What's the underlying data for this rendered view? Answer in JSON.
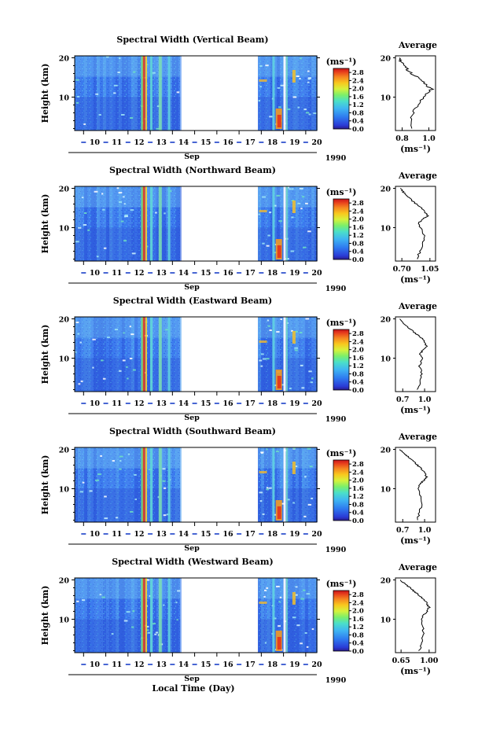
{
  "figure": {
    "year_label": "1990",
    "xlabel": "Local Time (Day)",
    "month_label": "Sep",
    "colorbar_unit": "(ms⁻¹)",
    "avg_title": "Average",
    "avg_unit": "(ms⁻¹)",
    "ylabel": "Height (km)"
  },
  "chart_data": [
    {
      "type": "heatmap",
      "title": "Spectral Width (Vertical Beam)",
      "ylabel": "Height (km)",
      "xlabel": "Sep",
      "x_ticks": [
        "10",
        "11",
        "12",
        "13",
        "14",
        "15",
        "16",
        "17",
        "18",
        "19",
        "20"
      ],
      "y_ticks": [
        "20",
        "10"
      ],
      "ylim": [
        1.5,
        20.5
      ],
      "xlim": [
        9.6,
        20.5
      ],
      "data_gaps_days": [
        [
          14.35,
          17.85
        ]
      ],
      "colorbar": {
        "unit": "(ms⁻¹)",
        "ticks": [
          "2.8",
          "2.4",
          "2.0",
          "1.6",
          "1.2",
          "0.8",
          "0.4",
          "0.0"
        ],
        "range": [
          0.0,
          3.0
        ]
      },
      "average_profile": {
        "title": "Average",
        "xlabel": "(ms⁻¹)",
        "x_ticks": [
          "0.8",
          "1.0"
        ],
        "xlim": [
          0.75,
          1.05
        ],
        "y_ticks": [
          "20",
          "10"
        ],
        "heights_km": [
          2,
          4,
          6,
          8,
          10,
          11,
          12,
          13,
          14,
          15,
          16,
          17,
          18,
          19,
          20
        ],
        "values": [
          0.88,
          0.87,
          0.88,
          0.92,
          0.96,
          0.99,
          1.02,
          0.98,
          0.95,
          0.92,
          0.87,
          0.84,
          0.81,
          0.79,
          0.78
        ]
      }
    },
    {
      "type": "heatmap",
      "title": "Spectral Width (Northward Beam)",
      "ylabel": "Height (km)",
      "xlabel": "Sep",
      "x_ticks": [
        "10",
        "11",
        "12",
        "13",
        "14",
        "15",
        "16",
        "17",
        "18",
        "19",
        "20"
      ],
      "y_ticks": [
        "20",
        "10"
      ],
      "ylim": [
        1.5,
        20.5
      ],
      "xlim": [
        9.6,
        20.5
      ],
      "data_gaps_days": [
        [
          14.35,
          17.85
        ]
      ],
      "colorbar": {
        "unit": "(ms⁻¹)",
        "ticks": [
          "2.8",
          "2.4",
          "2.0",
          "1.6",
          "1.2",
          "0.8",
          "0.4",
          "0.0"
        ],
        "range": [
          0.0,
          3.0
        ]
      },
      "average_profile": {
        "title": "Average",
        "xlabel": "(ms⁻¹)",
        "x_ticks": [
          "0.70",
          "1.05"
        ],
        "xlim": [
          0.62,
          1.12
        ],
        "y_ticks": [
          "20",
          "10"
        ],
        "heights_km": [
          2,
          4,
          6,
          8,
          10,
          11,
          12,
          13,
          14,
          15,
          16,
          17,
          18,
          19,
          20
        ],
        "values": [
          0.88,
          0.93,
          0.96,
          0.98,
          0.93,
          0.9,
          0.95,
          1.02,
          0.99,
          0.95,
          0.88,
          0.82,
          0.77,
          0.72,
          0.68
        ]
      }
    },
    {
      "type": "heatmap",
      "title": "Spectral Width (Eastward Beam)",
      "ylabel": "Height (km)",
      "xlabel": "Sep",
      "x_ticks": [
        "10",
        "11",
        "12",
        "13",
        "14",
        "15",
        "16",
        "17",
        "18",
        "19",
        "20"
      ],
      "y_ticks": [
        "20",
        "10"
      ],
      "ylim": [
        1.5,
        20.5
      ],
      "xlim": [
        9.6,
        20.5
      ],
      "data_gaps_days": [
        [
          14.35,
          17.85
        ]
      ],
      "colorbar": {
        "unit": "(ms⁻¹)",
        "ticks": [
          "2.8",
          "2.4",
          "2.0",
          "1.6",
          "1.2",
          "0.8",
          "0.4",
          "0.0"
        ],
        "range": [
          0.0,
          3.0
        ]
      },
      "average_profile": {
        "title": "Average",
        "xlabel": "(ms⁻¹)",
        "x_ticks": [
          "0.7",
          "1.0"
        ],
        "xlim": [
          0.6,
          1.15
        ],
        "y_ticks": [
          "20",
          "10"
        ],
        "heights_km": [
          2,
          4,
          6,
          8,
          10,
          11,
          12,
          13,
          14,
          15,
          16,
          17,
          18,
          19,
          20
        ],
        "values": [
          0.9,
          0.94,
          0.96,
          0.93,
          0.97,
          0.94,
          0.97,
          1.03,
          1.0,
          0.97,
          0.9,
          0.83,
          0.76,
          0.7,
          0.66
        ]
      }
    },
    {
      "type": "heatmap",
      "title": "Spectral Width (Southward Beam)",
      "ylabel": "Height (km)",
      "xlabel": "Sep",
      "x_ticks": [
        "10",
        "11",
        "12",
        "13",
        "14",
        "15",
        "16",
        "17",
        "18",
        "19",
        "20"
      ],
      "y_ticks": [
        "20",
        "10"
      ],
      "ylim": [
        1.5,
        20.5
      ],
      "xlim": [
        9.6,
        20.5
      ],
      "data_gaps_days": [
        [
          14.35,
          17.85
        ]
      ],
      "colorbar": {
        "unit": "(ms⁻¹)",
        "ticks": [
          "2.8",
          "2.4",
          "2.0",
          "1.6",
          "1.2",
          "0.8",
          "0.4",
          "0.0"
        ],
        "range": [
          0.0,
          3.0
        ]
      },
      "average_profile": {
        "title": "Average",
        "xlabel": "(ms⁻¹)",
        "x_ticks": [
          "0.7",
          "1.0"
        ],
        "xlim": [
          0.6,
          1.15
        ],
        "y_ticks": [
          "20",
          "10"
        ],
        "heights_km": [
          2,
          4,
          6,
          8,
          10,
          11,
          12,
          13,
          14,
          15,
          16,
          17,
          18,
          19,
          20
        ],
        "values": [
          0.9,
          0.93,
          0.96,
          0.95,
          0.92,
          0.93,
          0.98,
          1.03,
          1.0,
          0.96,
          0.9,
          0.84,
          0.78,
          0.72,
          0.66
        ]
      }
    },
    {
      "type": "heatmap",
      "title": "Spectral Width (Westward Beam)",
      "ylabel": "Height (km)",
      "xlabel": "Sep",
      "x_ticks": [
        "10",
        "11",
        "12",
        "13",
        "14",
        "15",
        "16",
        "17",
        "18",
        "19",
        "20"
      ],
      "y_ticks": [
        "20",
        "10"
      ],
      "ylim": [
        1.5,
        20.5
      ],
      "xlim": [
        9.6,
        20.5
      ],
      "data_gaps_days": [
        [
          14.35,
          17.85
        ]
      ],
      "colorbar": {
        "unit": "(ms⁻¹)",
        "ticks": [
          "2.8",
          "2.4",
          "2.0",
          "1.6",
          "1.2",
          "0.8",
          "0.4",
          "0.0"
        ],
        "range": [
          0.0,
          3.0
        ]
      },
      "average_profile": {
        "title": "Average",
        "xlabel": "(ms⁻¹)",
        "x_ticks": [
          "0.65",
          "1.00"
        ],
        "xlim": [
          0.58,
          1.08
        ],
        "y_ticks": [
          "20",
          "10"
        ],
        "heights_km": [
          2,
          4,
          6,
          8,
          10,
          11,
          12,
          13,
          14,
          15,
          16,
          17,
          18,
          19,
          20
        ],
        "values": [
          0.88,
          0.9,
          0.93,
          0.92,
          0.9,
          0.93,
          0.97,
          1.0,
          0.97,
          0.94,
          0.88,
          0.82,
          0.76,
          0.7,
          0.64
        ]
      }
    }
  ]
}
